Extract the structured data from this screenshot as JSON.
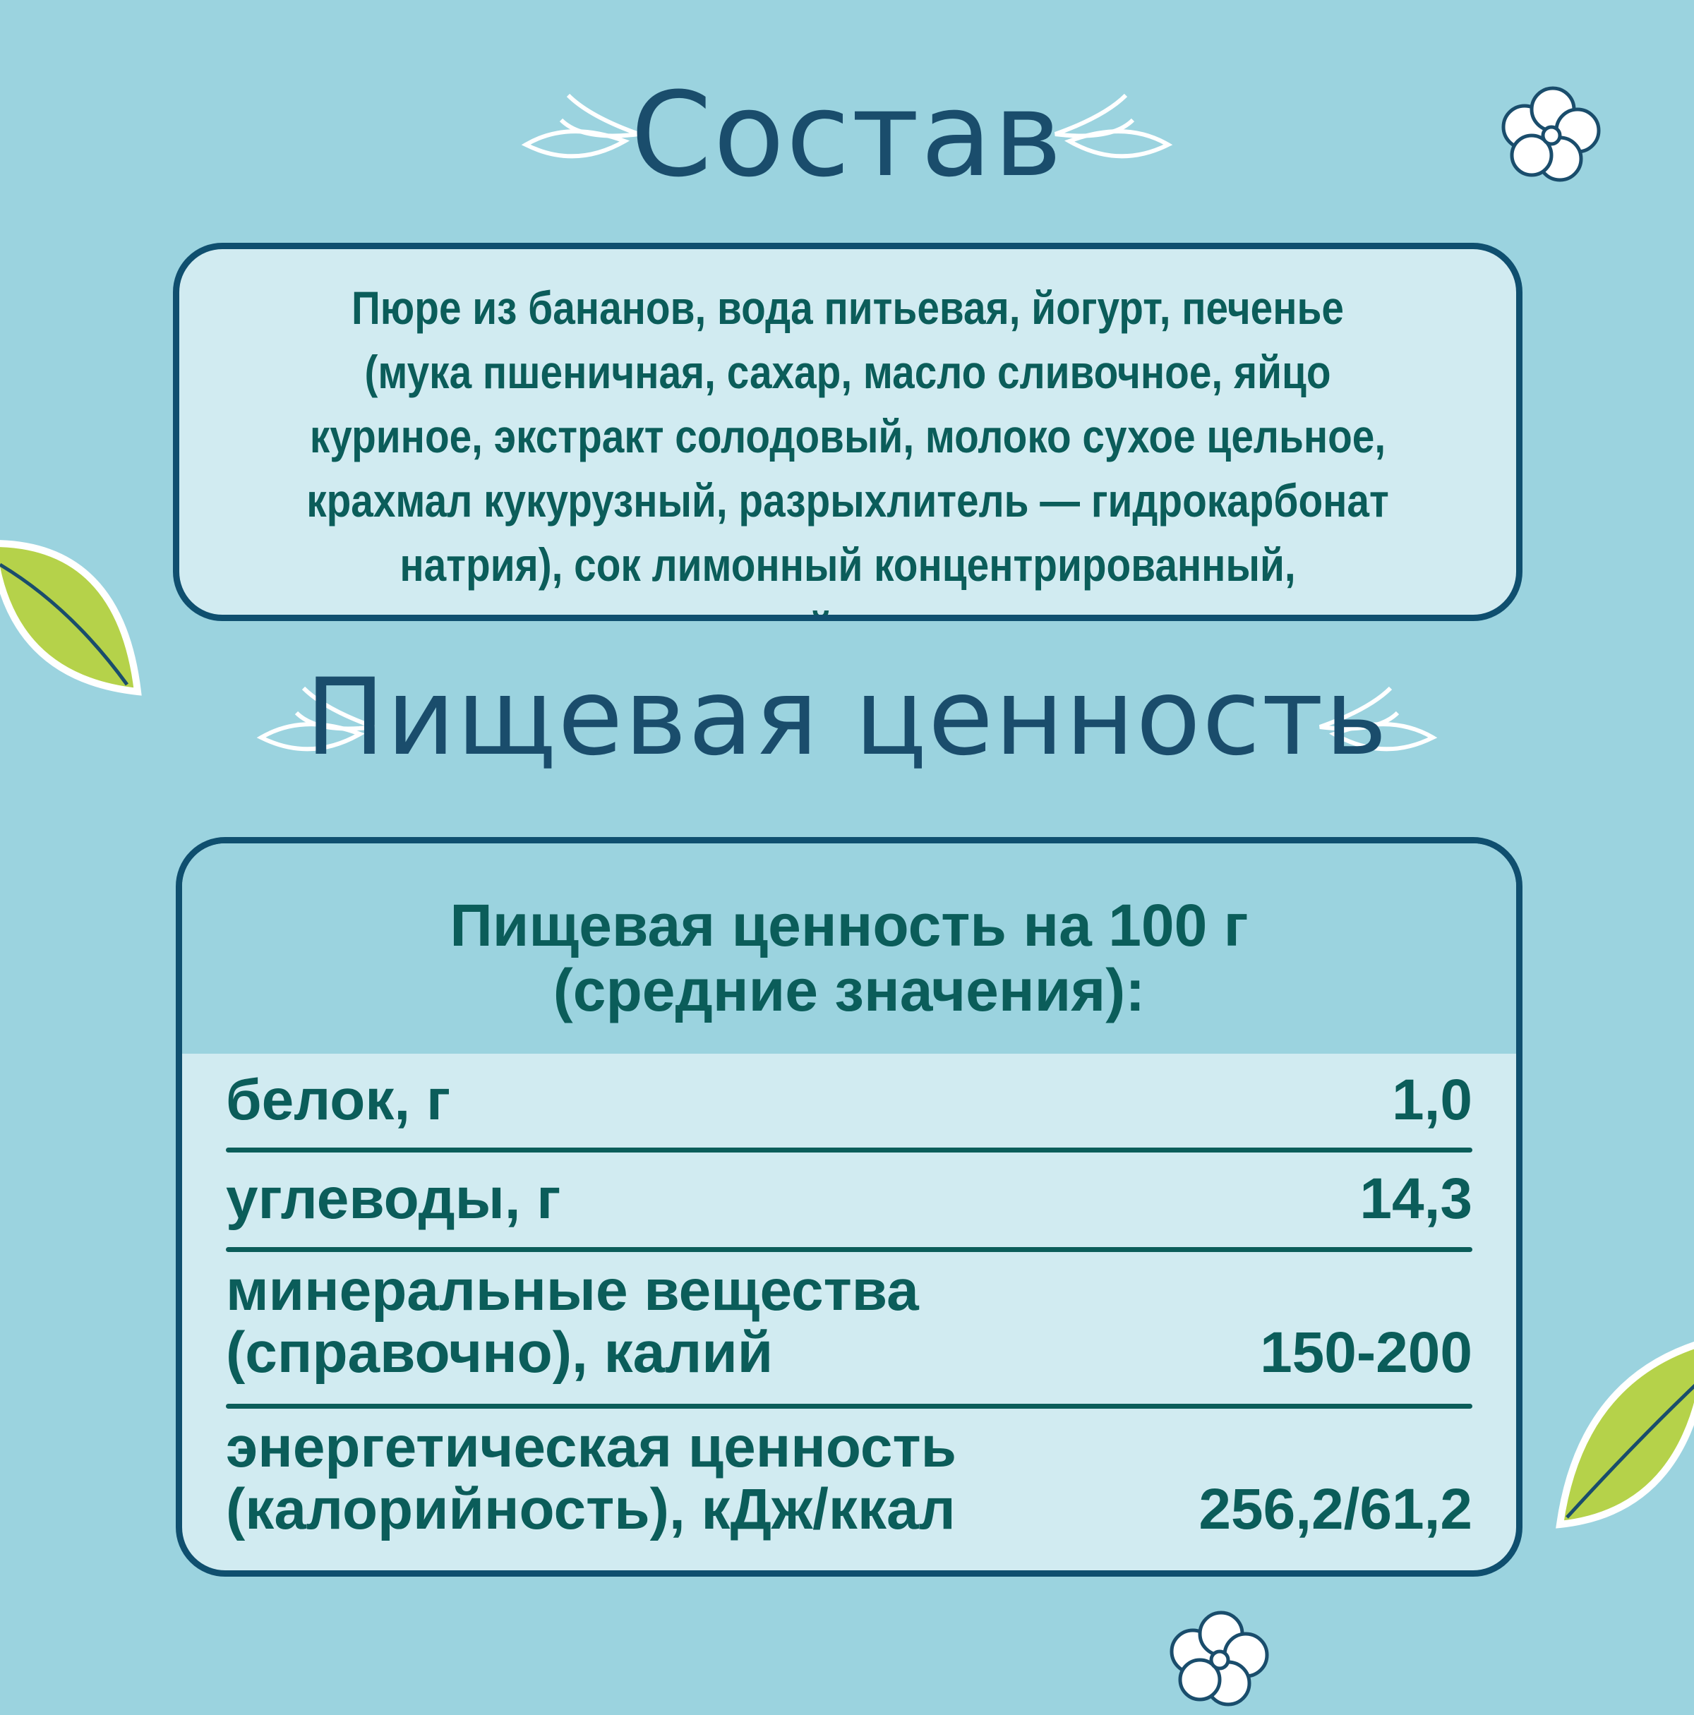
{
  "composition": {
    "title": "Состав",
    "text": "Пюре из бананов, вода питьевая, йогурт, печенье (мука пшеничная, сахар, масло сливочное, яйцо куриное, экстракт солодовый, молоко сухое цельное, крахмал кукурузный, разрыхлитель — гидрокарбонат натрия), сок лимонный концентрированный, натуральный ароматизатор."
  },
  "nutrition": {
    "title": "Пищевая ценность",
    "table_header_line1": "Пищевая ценность на 100 г",
    "table_header_line2": "(средние значения):",
    "rows": [
      {
        "label": "белок, г",
        "value": "1,0"
      },
      {
        "label": "углеводы, г",
        "value": "14,3"
      },
      {
        "label_line1": "минеральные вещества",
        "label_line2": "(справочно), калий",
        "value": "150-200"
      },
      {
        "label_line1": "энергетическая ценность",
        "label_line2": "(калорийность), кДж/ккал",
        "value": "256,2/61,2"
      }
    ]
  },
  "colors": {
    "background": "#9bd3df",
    "panel": "#d1ebf1",
    "border": "#0f4f6f",
    "text": "#0b5d5a",
    "leaf_green": "#b5d24a"
  }
}
